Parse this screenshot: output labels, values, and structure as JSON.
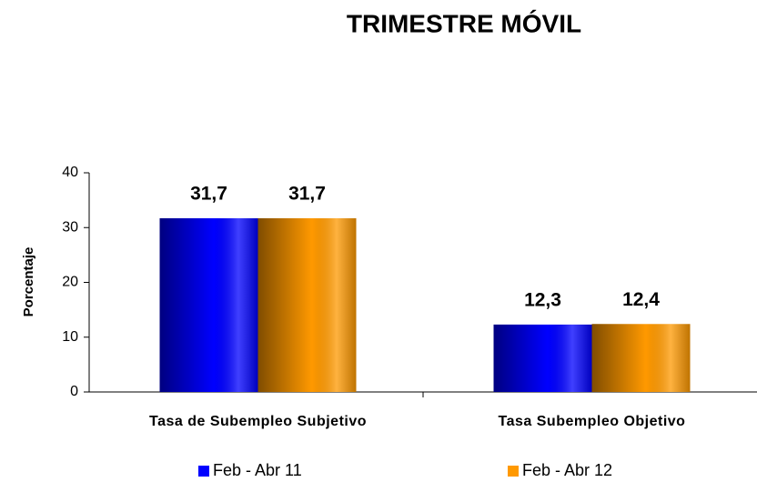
{
  "chart_data": {
    "type": "bar",
    "title": "TRIMESTRE MÓVIL",
    "y_label": "Porcentaje",
    "categories": [
      "Tasa de Subempleo Subjetivo",
      "Tasa Subempleo Objetivo"
    ],
    "series": [
      {
        "name": "Feb - Abr 11",
        "color": "#0000ff",
        "values": [
          31.7,
          12.3
        ],
        "value_labels": [
          "31,7",
          "12,3"
        ]
      },
      {
        "name": "Feb - Abr 12",
        "color": "#ff9900",
        "values": [
          31.7,
          12.4
        ],
        "value_labels": [
          "31,7",
          "12,4"
        ]
      }
    ],
    "ylim": [
      0,
      40
    ],
    "yticks": [
      0,
      10,
      20,
      30,
      40
    ],
    "grid": false,
    "legend": "bottom"
  }
}
